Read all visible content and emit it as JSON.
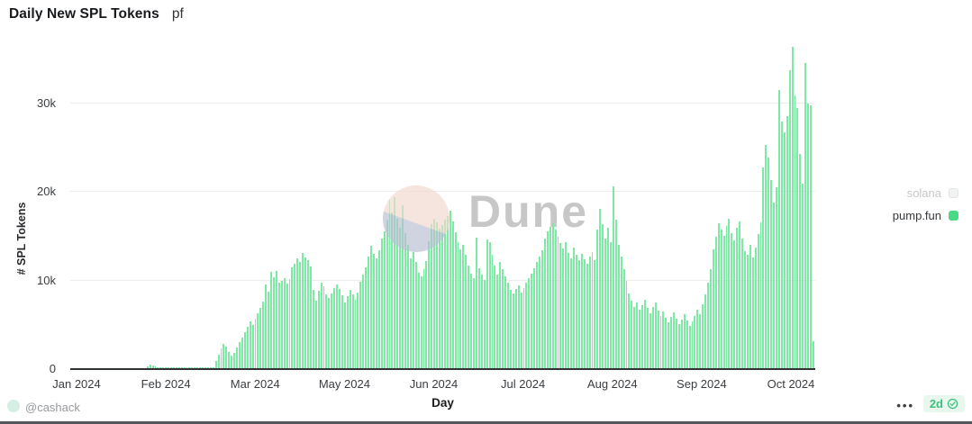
{
  "header": {
    "title": "Daily New SPL Tokens",
    "tag": "pf"
  },
  "watermark": {
    "text": "Dune"
  },
  "legend": {
    "items": [
      {
        "label": "solana",
        "active": false
      },
      {
        "label": "pump.fun",
        "active": true
      }
    ]
  },
  "footer": {
    "author_handle": "@cashack",
    "menu_dots": "•••",
    "refresh_badge_label": "2d"
  },
  "colors": {
    "bar": "#7de9a5",
    "legend_active_marker": "#49da83",
    "badge_text": "#3ec07d",
    "badge_bg": "#e8f8ef",
    "gridline": "#ededee",
    "axis_line": "#313437",
    "watermark_peach": "#f2d9ce",
    "watermark_slate": "#b9bed2"
  },
  "chart_data": {
    "type": "bar",
    "title": "Daily New SPL Tokens",
    "xlabel": "Day",
    "ylabel": "# SPL Tokens",
    "x_tick_labels": [
      "Jan 2024",
      "Feb 2024",
      "Mar 2024",
      "May 2024",
      "Jun 2024",
      "Jul 2024",
      "Aug 2024",
      "Sep 2024",
      "Oct 2024"
    ],
    "y_tick_labels": [
      "0",
      "10k",
      "20k",
      "30k"
    ],
    "y_tick_values_k": [
      0,
      10,
      20,
      30
    ],
    "ylim_k": [
      0,
      37
    ],
    "grid": true,
    "legend_position": "right",
    "unit": "values_k are thousands of new SPL tokens per day",
    "series": [
      {
        "name": "pump.fun",
        "visible": true,
        "values_k": [
          0,
          0,
          0,
          0,
          0,
          0,
          0,
          0,
          0,
          0,
          0,
          0,
          0,
          0,
          0,
          0,
          0,
          0,
          0,
          0,
          0,
          0,
          0,
          0,
          0,
          0,
          0,
          0,
          0,
          0.2,
          0.4,
          0.3,
          0.2,
          0.15,
          0.15,
          0.15,
          0.15,
          0.15,
          0.15,
          0.15,
          0.15,
          0.15,
          0.15,
          0.15,
          0.15,
          0.15,
          0.15,
          0.15,
          0.15,
          0.15,
          0.15,
          0.15,
          0.15,
          0.15,
          0.15,
          0.8,
          1.5,
          2.2,
          2.7,
          2.4,
          1.8,
          1.4,
          1.7,
          2.3,
          2.9,
          3.5,
          4.1,
          4.7,
          5.3,
          4.9,
          5.6,
          6.2,
          6.8,
          7.5,
          9.4,
          8.6,
          10.9,
          10.3,
          11.0,
          9.6,
          9.9,
          10.2,
          9.5,
          10.1,
          11.4,
          11.8,
          12.4,
          12.0,
          13.0,
          12.5,
          12.2,
          11.5,
          8.8,
          7.6,
          8.7,
          9.6,
          9.2,
          8.3,
          7.9,
          8.4,
          9.0,
          9.4,
          8.9,
          8.2,
          7.4,
          8.1,
          8.8,
          8.3,
          7.7,
          8.5,
          9.7,
          10.6,
          11.4,
          12.6,
          13.8,
          12.9,
          12.4,
          13.3,
          14.6,
          15.4,
          16.8,
          19.0,
          17.6,
          19.3,
          16.9,
          15.8,
          18.4,
          15.2,
          13.9,
          12.4,
          13.1,
          12.0,
          10.8,
          10.4,
          11.2,
          12.1,
          14.3,
          16.2,
          16.9,
          16.4,
          15.7,
          16.1,
          16.8,
          17.2,
          17.8,
          16.6,
          15.3,
          14.2,
          13.4,
          13.9,
          12.8,
          11.6,
          10.7,
          10.2,
          14.7,
          11.3,
          10.6,
          10.0,
          14.5,
          14.2,
          12.8,
          11.6,
          10.6,
          12.0,
          11.2,
          10.4,
          9.6,
          8.8,
          8.4,
          8.9,
          9.3,
          8.5,
          9.0,
          9.6,
          10.2,
          10.7,
          11.3,
          12.0,
          12.6,
          13.3,
          14.6,
          15.4,
          15.9,
          16.3,
          15.6,
          14.8,
          14.1,
          13.5,
          14.2,
          13.0,
          12.4,
          13.6,
          12.8,
          12.2,
          12.9,
          12.3,
          11.8,
          12.6,
          13.1,
          12.2,
          15.6,
          18.0,
          16.2,
          14.6,
          15.8,
          14.2,
          20.5,
          16.8,
          13.9,
          12.6,
          11.2,
          9.8,
          8.4,
          7.6,
          6.9,
          7.4,
          6.6,
          7.1,
          7.7,
          6.8,
          6.2,
          6.9,
          7.4,
          6.5,
          5.9,
          6.4,
          5.7,
          5.2,
          5.8,
          6.3,
          5.6,
          5.0,
          5.5,
          6.1,
          5.4,
          4.8,
          5.3,
          5.9,
          6.6,
          6.1,
          7.2,
          8.3,
          9.6,
          11.2,
          13.4,
          14.8,
          16.3,
          15.6,
          14.9,
          16.0,
          16.9,
          15.2,
          14.4,
          15.8,
          16.5,
          14.6,
          13.2,
          12.8,
          13.9,
          12.5,
          13.6,
          15.1,
          16.4,
          22.6,
          25.2,
          23.8,
          21.2,
          18.7,
          20.4,
          31.4,
          27.8,
          26.6,
          28.4,
          33.6,
          36.2,
          30.8,
          29.3,
          24.2,
          20.8,
          34.4,
          29.8,
          29.6,
          3.0
        ]
      },
      {
        "name": "solana",
        "visible": false,
        "values_k": []
      }
    ]
  }
}
